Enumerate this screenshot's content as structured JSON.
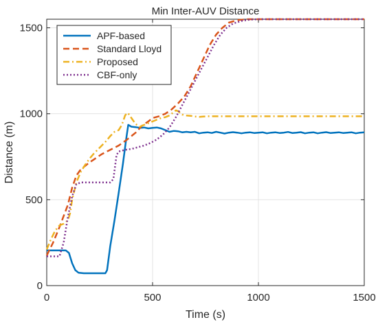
{
  "chart_data": {
    "type": "line",
    "title": "Min Inter-AUV Distance",
    "xlabel": "Time (s)",
    "ylabel": "Distance (m)",
    "xlim": [
      0,
      1500
    ],
    "ylim": [
      0,
      1550
    ],
    "x_ticks": [
      0,
      500,
      1000,
      1500
    ],
    "y_ticks": [
      0,
      500,
      1000,
      1500
    ],
    "x_tick_labels": [
      "0",
      "500",
      "1000",
      "1500"
    ],
    "y_tick_labels": [
      "0",
      "500",
      "1000",
      "1500"
    ],
    "grid": true,
    "legend_position": "top-left",
    "series": [
      {
        "name": "APF-based",
        "color": "#0072BD",
        "dash": "solid",
        "points": [
          [
            0,
            205
          ],
          [
            90,
            205
          ],
          [
            105,
            190
          ],
          [
            120,
            130
          ],
          [
            135,
            90
          ],
          [
            150,
            75
          ],
          [
            175,
            72
          ],
          [
            230,
            72
          ],
          [
            277,
            72
          ],
          [
            285,
            90
          ],
          [
            300,
            230
          ],
          [
            320,
            380
          ],
          [
            340,
            540
          ],
          [
            360,
            710
          ],
          [
            375,
            850
          ],
          [
            385,
            935
          ],
          [
            400,
            925
          ],
          [
            420,
            922
          ],
          [
            440,
            918
          ],
          [
            460,
            920
          ],
          [
            480,
            915
          ],
          [
            500,
            918
          ],
          [
            520,
            920
          ],
          [
            540,
            915
          ],
          [
            560,
            905
          ],
          [
            580,
            895
          ],
          [
            600,
            900
          ],
          [
            620,
            898
          ],
          [
            640,
            892
          ],
          [
            660,
            895
          ],
          [
            680,
            892
          ],
          [
            700,
            895
          ],
          [
            720,
            886
          ],
          [
            740,
            890
          ],
          [
            760,
            892
          ],
          [
            780,
            888
          ],
          [
            800,
            895
          ],
          [
            820,
            890
          ],
          [
            840,
            885
          ],
          [
            860,
            890
          ],
          [
            880,
            893
          ],
          [
            900,
            890
          ],
          [
            920,
            886
          ],
          [
            940,
            890
          ],
          [
            960,
            892
          ],
          [
            980,
            888
          ],
          [
            1000,
            890
          ],
          [
            1020,
            892
          ],
          [
            1040,
            886
          ],
          [
            1060,
            890
          ],
          [
            1080,
            892
          ],
          [
            1100,
            888
          ],
          [
            1120,
            890
          ],
          [
            1140,
            894
          ],
          [
            1160,
            888
          ],
          [
            1180,
            890
          ],
          [
            1200,
            893
          ],
          [
            1220,
            886
          ],
          [
            1240,
            890
          ],
          [
            1260,
            892
          ],
          [
            1280,
            886
          ],
          [
            1300,
            890
          ],
          [
            1320,
            893
          ],
          [
            1340,
            888
          ],
          [
            1360,
            890
          ],
          [
            1380,
            892
          ],
          [
            1400,
            888
          ],
          [
            1420,
            890
          ],
          [
            1440,
            892
          ],
          [
            1460,
            886
          ],
          [
            1480,
            890
          ],
          [
            1500,
            892
          ]
        ]
      },
      {
        "name": "Standard Lloyd",
        "color": "#D95319",
        "dash": "dashed",
        "points": [
          [
            0,
            175
          ],
          [
            30,
            250
          ],
          [
            60,
            340
          ],
          [
            100,
            470
          ],
          [
            120,
            570
          ],
          [
            140,
            640
          ],
          [
            160,
            675
          ],
          [
            180,
            695
          ],
          [
            200,
            715
          ],
          [
            230,
            740
          ],
          [
            260,
            765
          ],
          [
            300,
            790
          ],
          [
            340,
            815
          ],
          [
            380,
            850
          ],
          [
            420,
            890
          ],
          [
            450,
            930
          ],
          [
            480,
            955
          ],
          [
            500,
            975
          ],
          [
            530,
            985
          ],
          [
            560,
            1000
          ],
          [
            590,
            1025
          ],
          [
            620,
            1060
          ],
          [
            650,
            1100
          ],
          [
            680,
            1160
          ],
          [
            710,
            1240
          ],
          [
            740,
            1320
          ],
          [
            770,
            1400
          ],
          [
            800,
            1460
          ],
          [
            830,
            1500
          ],
          [
            860,
            1530
          ],
          [
            900,
            1545
          ],
          [
            950,
            1550
          ],
          [
            1000,
            1550
          ],
          [
            1500,
            1550
          ]
        ]
      },
      {
        "name": "Proposed",
        "color": "#EDB120",
        "dash": "dashdot",
        "points": [
          [
            0,
            210
          ],
          [
            20,
            270
          ],
          [
            40,
            320
          ],
          [
            60,
            350
          ],
          [
            80,
            360
          ],
          [
            100,
            380
          ],
          [
            110,
            420
          ],
          [
            120,
            500
          ],
          [
            140,
            600
          ],
          [
            160,
            660
          ],
          [
            180,
            700
          ],
          [
            200,
            735
          ],
          [
            220,
            765
          ],
          [
            240,
            790
          ],
          [
            260,
            815
          ],
          [
            280,
            840
          ],
          [
            300,
            870
          ],
          [
            320,
            895
          ],
          [
            340,
            905
          ],
          [
            355,
            935
          ],
          [
            370,
            990
          ],
          [
            380,
            1005
          ],
          [
            390,
            995
          ],
          [
            400,
            975
          ],
          [
            420,
            940
          ],
          [
            440,
            925
          ],
          [
            460,
            935
          ],
          [
            480,
            945
          ],
          [
            500,
            955
          ],
          [
            520,
            965
          ],
          [
            540,
            975
          ],
          [
            560,
            980
          ],
          [
            580,
            990
          ],
          [
            600,
            1010
          ],
          [
            610,
            1020
          ],
          [
            620,
            1015
          ],
          [
            640,
            995
          ],
          [
            660,
            990
          ],
          [
            680,
            988
          ],
          [
            700,
            984
          ],
          [
            720,
            982
          ],
          [
            740,
            984
          ],
          [
            760,
            985
          ],
          [
            800,
            985
          ],
          [
            900,
            985
          ],
          [
            1000,
            985
          ],
          [
            1100,
            985
          ],
          [
            1200,
            985
          ],
          [
            1300,
            985
          ],
          [
            1400,
            985
          ],
          [
            1500,
            985
          ]
        ]
      },
      {
        "name": "CBF-only",
        "color": "#7E2F8E",
        "dash": "dotted",
        "points": [
          [
            0,
            170
          ],
          [
            60,
            170
          ],
          [
            80,
            250
          ],
          [
            100,
            400
          ],
          [
            120,
            520
          ],
          [
            140,
            590
          ],
          [
            160,
            600
          ],
          [
            200,
            600
          ],
          [
            260,
            600
          ],
          [
            300,
            600
          ],
          [
            315,
            620
          ],
          [
            330,
            760
          ],
          [
            340,
            780
          ],
          [
            370,
            790
          ],
          [
            400,
            795
          ],
          [
            430,
            805
          ],
          [
            460,
            815
          ],
          [
            490,
            830
          ],
          [
            520,
            850
          ],
          [
            550,
            880
          ],
          [
            580,
            920
          ],
          [
            610,
            980
          ],
          [
            640,
            1050
          ],
          [
            670,
            1120
          ],
          [
            700,
            1190
          ],
          [
            730,
            1260
          ],
          [
            760,
            1330
          ],
          [
            790,
            1400
          ],
          [
            820,
            1460
          ],
          [
            850,
            1500
          ],
          [
            880,
            1525
          ],
          [
            920,
            1540
          ],
          [
            960,
            1548
          ],
          [
            1000,
            1550
          ],
          [
            1500,
            1550
          ]
        ]
      }
    ]
  }
}
